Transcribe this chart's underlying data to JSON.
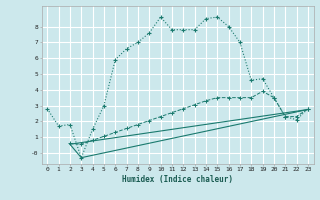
{
  "xlabel": "Humidex (Indice chaleur)",
  "bg_color": "#cce8ec",
  "grid_color": "#ffffff",
  "line_color": "#1a7a6e",
  "xlim": [
    -0.5,
    23.5
  ],
  "ylim": [
    -0.7,
    9.3
  ],
  "xticks": [
    0,
    1,
    2,
    3,
    4,
    5,
    6,
    7,
    8,
    9,
    10,
    11,
    12,
    13,
    14,
    15,
    16,
    17,
    18,
    19,
    20,
    21,
    22,
    23
  ],
  "yticks": [
    0,
    1,
    2,
    3,
    4,
    5,
    6,
    7,
    8
  ],
  "ytick_labels": [
    "-0",
    "1",
    "2",
    "3",
    "4",
    "5",
    "6",
    "7",
    "8"
  ],
  "line1_x": [
    0,
    1,
    2,
    3,
    4,
    5,
    6,
    7,
    8,
    9,
    10,
    11,
    12,
    13,
    14,
    15,
    16,
    17,
    18,
    19,
    20,
    21,
    22,
    23
  ],
  "line1_y": [
    2.8,
    1.7,
    1.8,
    -0.3,
    1.5,
    3.0,
    5.9,
    6.6,
    7.0,
    7.6,
    8.6,
    7.8,
    7.8,
    7.8,
    8.5,
    8.6,
    8.0,
    7.0,
    4.6,
    4.7,
    3.5,
    2.3,
    2.1,
    2.8
  ],
  "line2_x": [
    2,
    3,
    4,
    5,
    6,
    7,
    8,
    9,
    10,
    11,
    12,
    13,
    14,
    15,
    16,
    17,
    18,
    19,
    20,
    21,
    22,
    23
  ],
  "line2_y": [
    0.6,
    0.55,
    0.8,
    1.05,
    1.3,
    1.55,
    1.8,
    2.05,
    2.3,
    2.55,
    2.8,
    3.05,
    3.3,
    3.5,
    3.5,
    3.5,
    3.5,
    3.9,
    3.5,
    2.3,
    2.3,
    2.8
  ],
  "line3_x": [
    2,
    23
  ],
  "line3_y": [
    0.55,
    2.75
  ],
  "line4_x": [
    2,
    3,
    23
  ],
  "line4_y": [
    0.55,
    -0.3,
    2.75
  ]
}
